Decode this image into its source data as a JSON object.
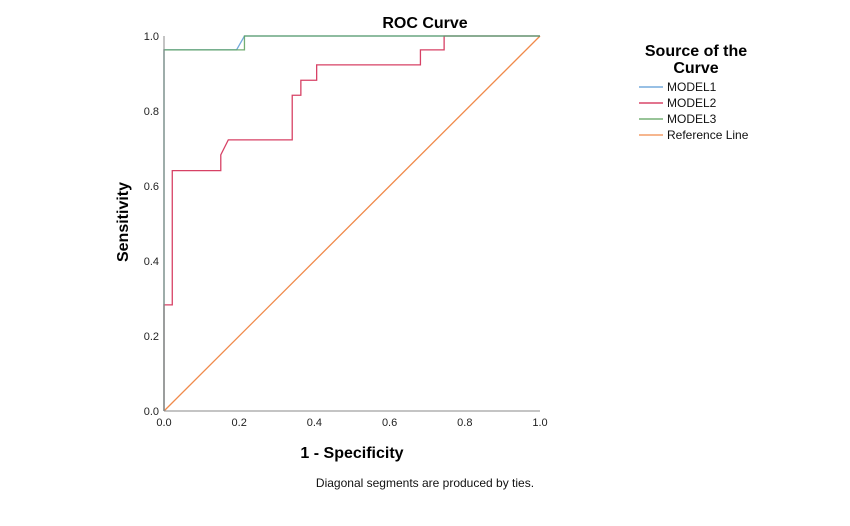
{
  "chart_data": {
    "type": "line",
    "title": "ROC Curve",
    "xlabel": "1 - Specificity",
    "ylabel": "Sensitivity",
    "xlim": [
      0,
      1
    ],
    "ylim": [
      0,
      1
    ],
    "grid": false,
    "x_ticks": [
      "0.0",
      "0.2",
      "0.4",
      "0.6",
      "0.8",
      "1.0"
    ],
    "y_ticks": [
      "0.0",
      "0.2",
      "0.4",
      "0.6",
      "0.8",
      "1.0"
    ],
    "legend": {
      "title_line1": "Source of the",
      "title_line2": "Curve",
      "placement": "right"
    },
    "footnote": "Diagonal segments are produced by ties.",
    "series": [
      {
        "name": "MODEL1",
        "color": "#5a9bd5",
        "x": [
          0,
          0,
          0,
          0.193,
          0.214,
          1.0
        ],
        "y": [
          0,
          0.28,
          0.963,
          0.963,
          1.0,
          1.0
        ]
      },
      {
        "name": "MODEL2",
        "color": "#d0204a",
        "x": [
          0,
          0,
          0.022,
          0.022,
          0.151,
          0.151,
          0.171,
          0.341,
          0.341,
          0.364,
          0.364,
          0.406,
          0.406,
          0.682,
          0.682,
          0.745,
          0.745,
          1.0
        ],
        "y": [
          0,
          0.283,
          0.283,
          0.641,
          0.641,
          0.683,
          0.723,
          0.723,
          0.842,
          0.842,
          0.882,
          0.882,
          0.923,
          0.923,
          0.963,
          0.963,
          1.0,
          1.0
        ]
      },
      {
        "name": "MODEL3",
        "color": "#5aa05a",
        "x": [
          0,
          0,
          0,
          0.214,
          0.214,
          1.0
        ],
        "y": [
          0,
          0.28,
          0.963,
          0.963,
          1.0,
          1.0
        ]
      },
      {
        "name": "Reference Line",
        "color": "#f08a4b",
        "x": [
          0,
          1
        ],
        "y": [
          0,
          1
        ]
      }
    ]
  }
}
